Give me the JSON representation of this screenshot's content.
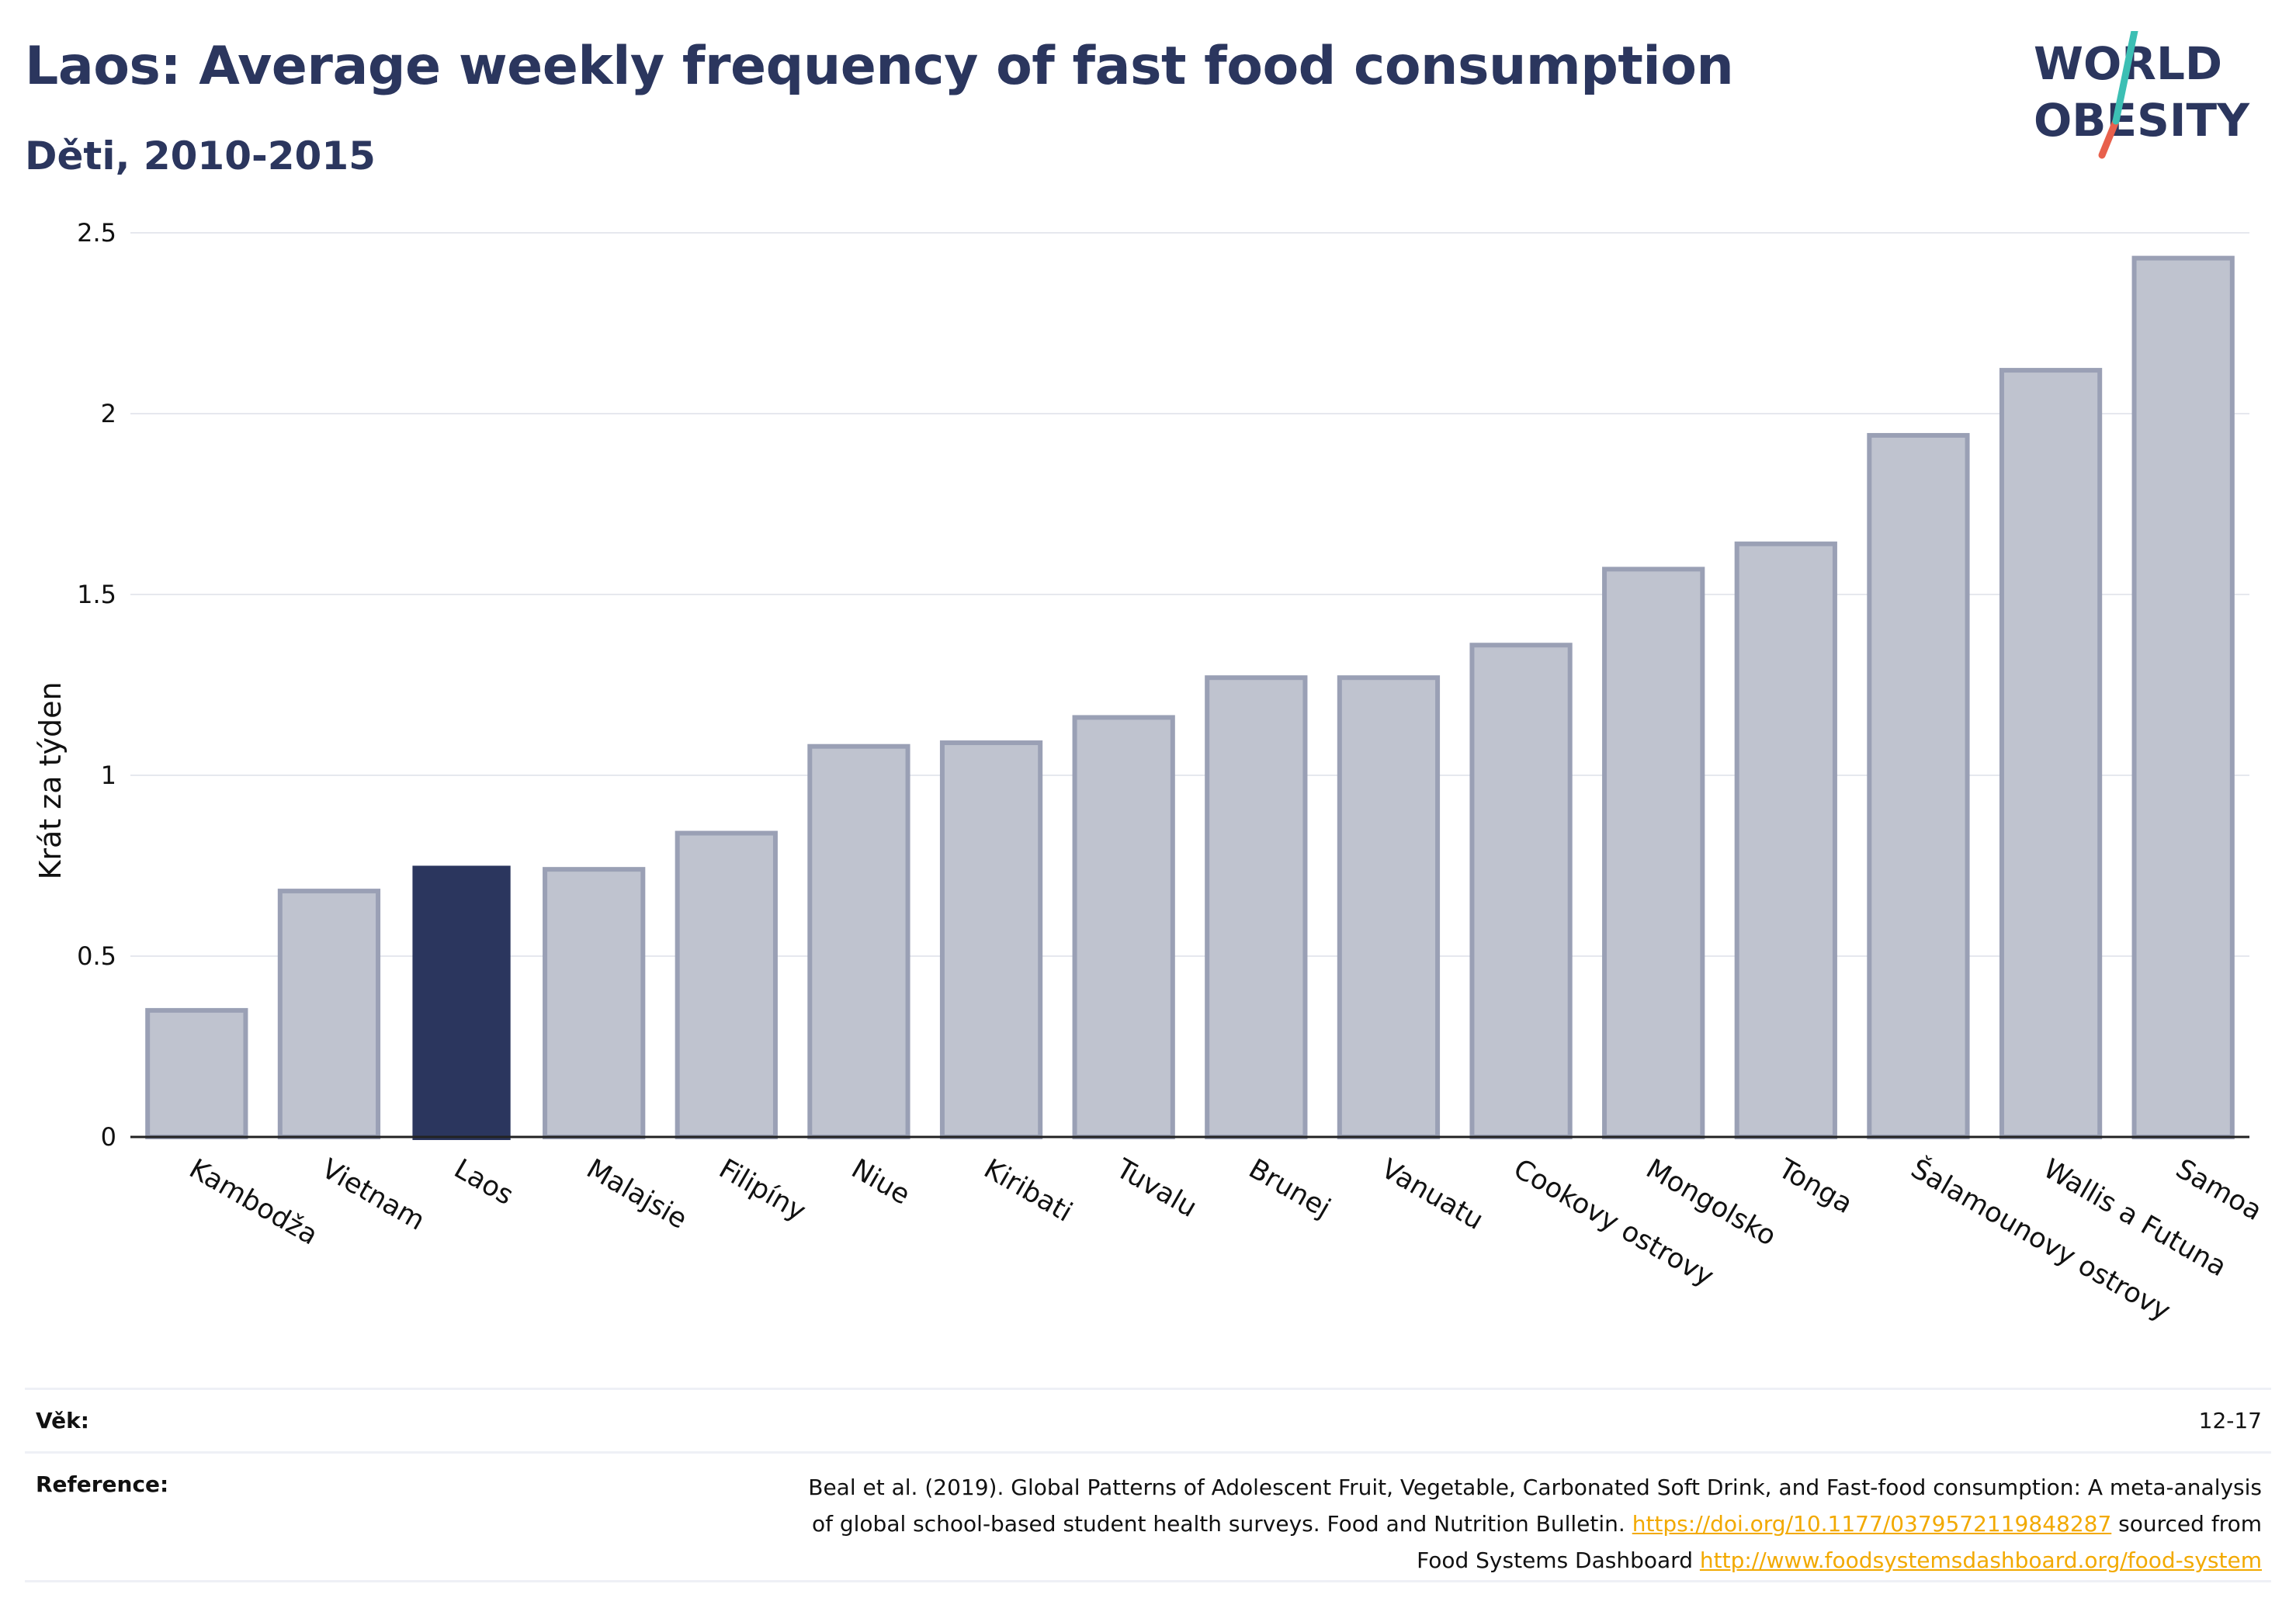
{
  "header": {
    "title": "Laos: Average weekly frequency of fast food consumption",
    "subtitle": "Děti, 2010-2015"
  },
  "logo": {
    "line1": "WORLD",
    "line2": "OBESITY",
    "text_color": "#2b365e",
    "slash_colors": [
      "#3cbfb4",
      "#e8604c"
    ]
  },
  "chart_data": {
    "type": "bar",
    "title": "Laos: Average weekly frequency of fast food consumption",
    "subtitle": "Děti, 2010-2015",
    "ylabel": "Krát za týden",
    "xlabel": "",
    "ylim": [
      0,
      2.5
    ],
    "yticks": [
      0,
      0.5,
      1,
      1.5,
      2,
      2.5
    ],
    "ytick_labels": [
      "0",
      "0.5",
      "1",
      "1.5",
      "2",
      "2.5"
    ],
    "grid": true,
    "categories": [
      "Kambodža",
      "Vietnam",
      "Laos",
      "Malajsie",
      "Filipíny",
      "Niue",
      "Kiribati",
      "Tuvalu",
      "Brunej",
      "Vanuatu",
      "Cookovy ostrovy",
      "Mongolsko",
      "Tonga",
      "Šalamounovy ostrovy",
      "Wallis a Futuna",
      "Samoa"
    ],
    "values": [
      0.35,
      0.68,
      0.75,
      0.74,
      0.84,
      1.08,
      1.09,
      1.16,
      1.27,
      1.27,
      1.36,
      1.57,
      1.64,
      1.94,
      2.12,
      2.43
    ],
    "highlight": "Laos",
    "colors": {
      "bar": "#bfc3cf",
      "bar_border": "#9aa0b5",
      "highlight": "#2b365e"
    }
  },
  "footer": {
    "age_label": "Věk:",
    "age_value": "12-17",
    "reference_label": "Reference:",
    "reference_line1": "Beal et al. (2019). Global Patterns of Adolescent Fruit, Vegetable, Carbonated Soft Drink, and Fast-food consumption: A meta-analysis",
    "reference_line2_text": "of global school-based student health surveys. Food and Nutrition Bulletin.",
    "reference_link1": "https://doi.org/10.1177/0379572119848287",
    "reference_line2_suffix": "sourced from",
    "reference_line3_text": "Food Systems Dashboard",
    "reference_link2": "http://www.foodsystemsdashboard.org/food-system",
    "link_color": "#f2a900"
  }
}
